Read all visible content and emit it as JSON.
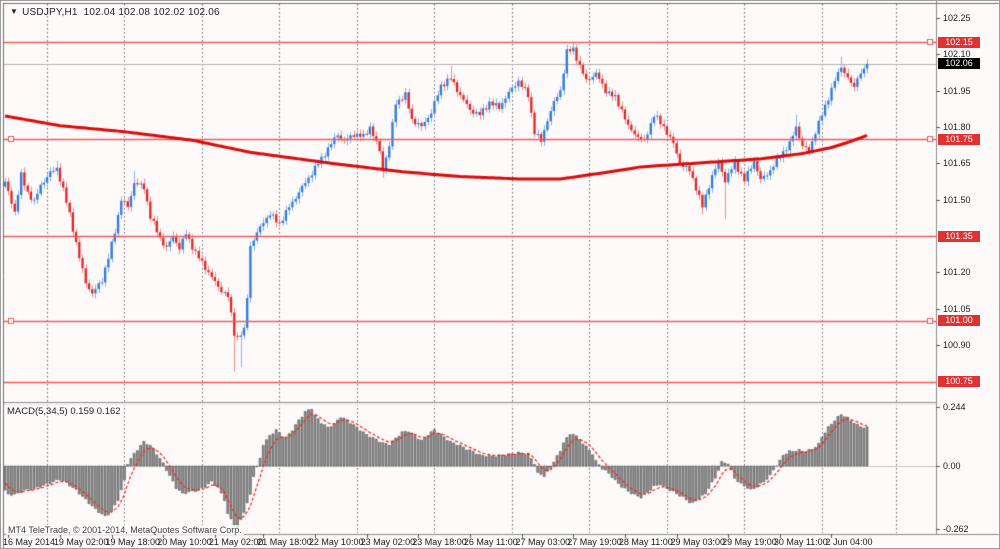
{
  "header": {
    "symbol_period": "USDJPY,H1",
    "open": "102.04",
    "high": "102.08",
    "low": "102.02",
    "close": "102.06"
  },
  "footer": {
    "copyright": "MT4 TeleTrade, © 2001-2014, MetaQuotes Software Corp."
  },
  "colors": {
    "background": "#fefafa",
    "bull_body": "#2f7ae0",
    "bull_wick": "#85b4ea",
    "bear_body": "#e02525",
    "bear_wick": "#f09090",
    "ma_line": "#dd0a0a",
    "level_line": "#f15b5b",
    "level_badge": "#e03232",
    "current_price_line": "#b4b4b4",
    "current_price_badge": "#000000",
    "macd_bar": "#8f8f8f",
    "macd_bar_edge": "#4f4f4f",
    "signal_line": "#ff1e1e",
    "grid": "#6e6e6e",
    "axis_text": "#1a1a1a",
    "frame": "#8c8c8c"
  },
  "chart_data": {
    "type": "candlestick",
    "title": "USDJPY,H1",
    "symbol": "USDJPY",
    "timeframe": "H1",
    "bars_total": 268,
    "x_labels": {
      "texts": [
        "16 May 2014",
        "19 May 02:00",
        "19 May 18:00",
        "20 May 10:00",
        "21 May 02:00",
        "21 May 18:00",
        "22 May 10:00",
        "23 May 02:00",
        "23 May 18:00",
        "26 May 11:00",
        "27 May 03:00",
        "27 May 19:00",
        "28 May 11:00",
        "29 May 03:00",
        "29 May 19:00",
        "30 May 11:00",
        "2 Jun 04:00"
      ],
      "bars": [
        1,
        17,
        33,
        49,
        65,
        80,
        96,
        112,
        128,
        144,
        160,
        176,
        192,
        208,
        224,
        240,
        256
      ]
    },
    "day_gridline_bars": [
      13,
      37,
      61,
      85,
      109,
      133,
      157,
      181,
      205,
      229,
      253,
      276
    ],
    "main_pane": {
      "y_ticks": [
        102.25,
        102.1,
        101.95,
        101.8,
        101.65,
        101.5,
        101.2,
        101.05,
        100.9
      ],
      "y_range": [
        100.67,
        102.3
      ],
      "levels": [
        102.15,
        101.75,
        101.35,
        101.0,
        100.75
      ],
      "level_labels": [
        "102.15",
        "101.75",
        "101.35",
        "101.00",
        "100.75"
      ],
      "current_price": 102.06,
      "current_price_label": "102.06",
      "last_quote": {
        "open": 102.04,
        "high": 102.08,
        "low": 102.02,
        "close": 102.06
      },
      "close_waypoints": [
        [
          0,
          101.57
        ],
        [
          2,
          101.49
        ],
        [
          3,
          101.45
        ],
        [
          5,
          101.6
        ],
        [
          7,
          101.53
        ],
        [
          9,
          101.49
        ],
        [
          11,
          101.56
        ],
        [
          14,
          101.61
        ],
        [
          16,
          101.63
        ],
        [
          18,
          101.54
        ],
        [
          20,
          101.44
        ],
        [
          23,
          101.26
        ],
        [
          25,
          101.16
        ],
        [
          27,
          101.11
        ],
        [
          30,
          101.17
        ],
        [
          32,
          101.26
        ],
        [
          34,
          101.37
        ],
        [
          36,
          101.5
        ],
        [
          38,
          101.47
        ],
        [
          40,
          101.57
        ],
        [
          43,
          101.55
        ],
        [
          45,
          101.43
        ],
        [
          48,
          101.34
        ],
        [
          50,
          101.3
        ],
        [
          52,
          101.35
        ],
        [
          54,
          101.3
        ],
        [
          56,
          101.36
        ],
        [
          59,
          101.28
        ],
        [
          61,
          101.24
        ],
        [
          64,
          101.18
        ],
        [
          66,
          101.14
        ],
        [
          69,
          101.1
        ],
        [
          71,
          100.95
        ],
        [
          72,
          100.93
        ],
        [
          74,
          100.96
        ],
        [
          75,
          101.1
        ],
        [
          76,
          101.31
        ],
        [
          78,
          101.36
        ],
        [
          80,
          101.41
        ],
        [
          82,
          101.44
        ],
        [
          85,
          101.4
        ],
        [
          88,
          101.47
        ],
        [
          92,
          101.55
        ],
        [
          96,
          101.63
        ],
        [
          100,
          101.71
        ],
        [
          103,
          101.77
        ],
        [
          105,
          101.74
        ],
        [
          108,
          101.77
        ],
        [
          111,
          101.76
        ],
        [
          113,
          101.8
        ],
        [
          116,
          101.7
        ],
        [
          117,
          101.63
        ],
        [
          119,
          101.72
        ],
        [
          121,
          101.9
        ],
        [
          124,
          101.93
        ],
        [
          126,
          101.83
        ],
        [
          129,
          101.8
        ],
        [
          132,
          101.86
        ],
        [
          135,
          101.97
        ],
        [
          138,
          102.0
        ],
        [
          141,
          101.93
        ],
        [
          144,
          101.87
        ],
        [
          147,
          101.85
        ],
        [
          150,
          101.9
        ],
        [
          153,
          101.88
        ],
        [
          156,
          101.94
        ],
        [
          159,
          101.99
        ],
        [
          162,
          101.93
        ],
        [
          164,
          101.78
        ],
        [
          166,
          101.74
        ],
        [
          168,
          101.83
        ],
        [
          170,
          101.9
        ],
        [
          172,
          101.95
        ],
        [
          174,
          102.11
        ],
        [
          176,
          102.12
        ],
        [
          178,
          102.05
        ],
        [
          180,
          101.99
        ],
        [
          183,
          102.02
        ],
        [
          186,
          101.95
        ],
        [
          189,
          101.92
        ],
        [
          191,
          101.87
        ],
        [
          193,
          101.8
        ],
        [
          196,
          101.76
        ],
        [
          198,
          101.74
        ],
        [
          201,
          101.85
        ],
        [
          204,
          101.8
        ],
        [
          207,
          101.73
        ],
        [
          209,
          101.65
        ],
        [
          212,
          101.62
        ],
        [
          214,
          101.55
        ],
        [
          216,
          101.47
        ],
        [
          219,
          101.6
        ],
        [
          221,
          101.65
        ],
        [
          223,
          101.58
        ],
        [
          226,
          101.65
        ],
        [
          229,
          101.58
        ],
        [
          232,
          101.66
        ],
        [
          234,
          101.58
        ],
        [
          237,
          101.62
        ],
        [
          240,
          101.68
        ],
        [
          243,
          101.73
        ],
        [
          245,
          101.8
        ],
        [
          247,
          101.72
        ],
        [
          249,
          101.7
        ],
        [
          251,
          101.78
        ],
        [
          253,
          101.85
        ],
        [
          255,
          101.92
        ],
        [
          257,
          101.99
        ],
        [
          259,
          102.05
        ],
        [
          261,
          102.0
        ],
        [
          263,
          101.96
        ],
        [
          264,
          102.0
        ],
        [
          265,
          102.02
        ],
        [
          266,
          102.04
        ],
        [
          267,
          102.06
        ]
      ],
      "wick_marks": [
        {
          "b": 16,
          "high": 101.66
        },
        {
          "b": 40,
          "high": 101.62
        },
        {
          "b": 71,
          "low": 100.79
        },
        {
          "b": 73,
          "low": 100.81
        },
        {
          "b": 117,
          "low": 101.59
        },
        {
          "b": 138,
          "high": 102.05
        },
        {
          "b": 176,
          "high": 102.15
        },
        {
          "b": 177,
          "high": 102.14
        },
        {
          "b": 216,
          "low": 101.44
        },
        {
          "b": 223,
          "low": 101.42
        },
        {
          "b": 245,
          "high": 101.85
        },
        {
          "b": 259,
          "high": 102.09
        },
        {
          "b": 267,
          "high": 102.08,
          "low": 102.02
        }
      ],
      "ma_waypoints": [
        [
          0,
          101.845
        ],
        [
          17,
          101.805
        ],
        [
          37,
          101.78
        ],
        [
          58,
          101.745
        ],
        [
          76,
          101.695
        ],
        [
          101,
          101.65
        ],
        [
          123,
          101.615
        ],
        [
          141,
          101.595
        ],
        [
          160,
          101.585
        ],
        [
          172,
          101.585
        ],
        [
          185,
          101.61
        ],
        [
          197,
          101.635
        ],
        [
          216,
          101.652
        ],
        [
          234,
          101.668
        ],
        [
          247,
          101.69
        ],
        [
          256,
          101.715
        ],
        [
          262,
          101.74
        ],
        [
          267,
          101.765
        ]
      ]
    },
    "macd_pane": {
      "label": "MACD(5,34,5)",
      "values_label": "0.159 0.162",
      "macd_value": 0.159,
      "signal_value": 0.162,
      "y_ticks": [
        0.244,
        0.0,
        -0.262
      ],
      "y_tick_labels": [
        "0.244",
        "0.00",
        "-0.262"
      ],
      "y_range": [
        -0.262,
        0.244
      ],
      "macd_waypoints": [
        [
          0,
          -0.1
        ],
        [
          1,
          -0.12
        ],
        [
          4,
          -0.115
        ],
        [
          6,
          -0.1
        ],
        [
          9,
          -0.095
        ],
        [
          11,
          -0.085
        ],
        [
          14,
          -0.07
        ],
        [
          17,
          -0.055
        ],
        [
          19,
          -0.07
        ],
        [
          22,
          -0.1
        ],
        [
          25,
          -0.14
        ],
        [
          28,
          -0.18
        ],
        [
          31,
          -0.21
        ],
        [
          33,
          -0.19
        ],
        [
          35,
          -0.14
        ],
        [
          37,
          -0.06
        ],
        [
          38,
          0.01
        ],
        [
          40,
          0.05
        ],
        [
          42,
          0.085
        ],
        [
          43,
          0.1
        ],
        [
          45,
          0.085
        ],
        [
          47,
          0.05
        ],
        [
          49,
          0.01
        ],
        [
          51,
          -0.04
        ],
        [
          53,
          -0.09
        ],
        [
          55,
          -0.115
        ],
        [
          58,
          -0.105
        ],
        [
          60,
          -0.1
        ],
        [
          62,
          -0.085
        ],
        [
          64,
          -0.065
        ],
        [
          66,
          -0.09
        ],
        [
          68,
          -0.14
        ],
        [
          69,
          -0.2
        ],
        [
          71,
          -0.245
        ],
        [
          72,
          -0.26
        ],
        [
          74,
          -0.19
        ],
        [
          76,
          -0.12
        ],
        [
          77,
          -0.04
        ],
        [
          79,
          0.03
        ],
        [
          80,
          0.09
        ],
        [
          82,
          0.125
        ],
        [
          84,
          0.15
        ],
        [
          86,
          0.125
        ],
        [
          87,
          0.115
        ],
        [
          89,
          0.15
        ],
        [
          91,
          0.19
        ],
        [
          93,
          0.225
        ],
        [
          95,
          0.24
        ],
        [
          96,
          0.21
        ],
        [
          98,
          0.18
        ],
        [
          100,
          0.16
        ],
        [
          102,
          0.175
        ],
        [
          104,
          0.205
        ],
        [
          106,
          0.19
        ],
        [
          108,
          0.17
        ],
        [
          110,
          0.15
        ],
        [
          112,
          0.13
        ],
        [
          115,
          0.11
        ],
        [
          117,
          0.095
        ],
        [
          119,
          0.09
        ],
        [
          121,
          0.115
        ],
        [
          123,
          0.14
        ],
        [
          125,
          0.145
        ],
        [
          127,
          0.125
        ],
        [
          129,
          0.105
        ],
        [
          131,
          0.13
        ],
        [
          133,
          0.15
        ],
        [
          134,
          0.14
        ],
        [
          136,
          0.12
        ],
        [
          138,
          0.1
        ],
        [
          141,
          0.085
        ],
        [
          143,
          0.07
        ],
        [
          145,
          0.06
        ],
        [
          147,
          0.045
        ],
        [
          151,
          0.04
        ],
        [
          154,
          0.045
        ],
        [
          157,
          0.05
        ],
        [
          159,
          0.055
        ],
        [
          162,
          0.05
        ],
        [
          164,
          0.01
        ],
        [
          165,
          -0.03
        ],
        [
          167,
          -0.04
        ],
        [
          169,
          -0.01
        ],
        [
          170,
          0.02
        ],
        [
          172,
          0.06
        ],
        [
          173,
          0.1
        ],
        [
          175,
          0.13
        ],
        [
          176,
          0.135
        ],
        [
          178,
          0.11
        ],
        [
          180,
          0.08
        ],
        [
          182,
          0.05
        ],
        [
          183,
          0.02
        ],
        [
          185,
          -0.01
        ],
        [
          187,
          -0.03
        ],
        [
          189,
          -0.06
        ],
        [
          191,
          -0.085
        ],
        [
          193,
          -0.105
        ],
        [
          195,
          -0.12
        ],
        [
          197,
          -0.13
        ],
        [
          199,
          -0.11
        ],
        [
          201,
          -0.085
        ],
        [
          203,
          -0.075
        ],
        [
          204,
          -0.085
        ],
        [
          206,
          -0.1
        ],
        [
          208,
          -0.115
        ],
        [
          210,
          -0.13
        ],
        [
          212,
          -0.15
        ],
        [
          213,
          -0.155
        ],
        [
          215,
          -0.135
        ],
        [
          217,
          -0.115
        ],
        [
          218,
          -0.09
        ],
        [
          220,
          -0.05
        ],
        [
          221,
          -0.015
        ],
        [
          222,
          0.015
        ],
        [
          224,
          0.01
        ],
        [
          225,
          -0.02
        ],
        [
          226,
          -0.05
        ],
        [
          228,
          -0.075
        ],
        [
          230,
          -0.09
        ],
        [
          231,
          -0.1
        ],
        [
          233,
          -0.085
        ],
        [
          235,
          -0.065
        ],
        [
          237,
          -0.04
        ],
        [
          238,
          -0.015
        ],
        [
          240,
          0.02
        ],
        [
          241,
          0.045
        ],
        [
          243,
          0.06
        ],
        [
          246,
          0.065
        ],
        [
          248,
          0.06
        ],
        [
          250,
          0.07
        ],
        [
          252,
          0.09
        ],
        [
          253,
          0.12
        ],
        [
          255,
          0.16
        ],
        [
          257,
          0.19
        ],
        [
          259,
          0.215
        ],
        [
          261,
          0.2
        ],
        [
          263,
          0.18
        ],
        [
          264,
          0.17
        ],
        [
          266,
          0.16
        ],
        [
          267,
          0.159
        ]
      ]
    }
  }
}
